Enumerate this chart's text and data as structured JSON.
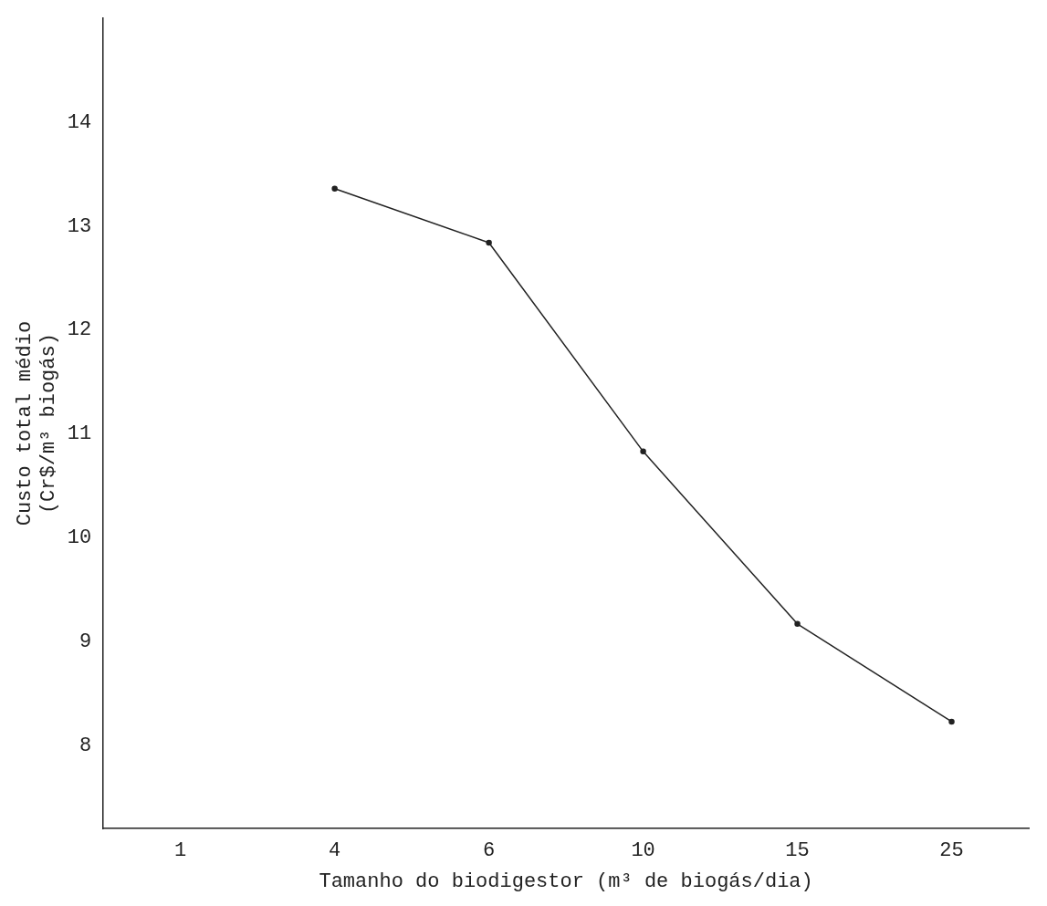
{
  "chart_data": {
    "type": "line",
    "xlabel": "Tamanho do biodigestor (m³ de biogás/dia)",
    "ylabel": "Custo total médio\n(Cr$/m³ biogás)",
    "categories": [
      "1",
      "4",
      "6",
      "10",
      "15",
      "25"
    ],
    "series": [
      {
        "color": "#222222",
        "values": [
          null,
          13.36,
          12.84,
          10.83,
          9.17,
          8.23
        ]
      }
    ],
    "ylim": [
      7.2,
      15
    ],
    "yticks": [
      8,
      9,
      10,
      11,
      12,
      13,
      14
    ],
    "grid": false,
    "legend": false,
    "marker": "circle",
    "line_style": "solid"
  }
}
